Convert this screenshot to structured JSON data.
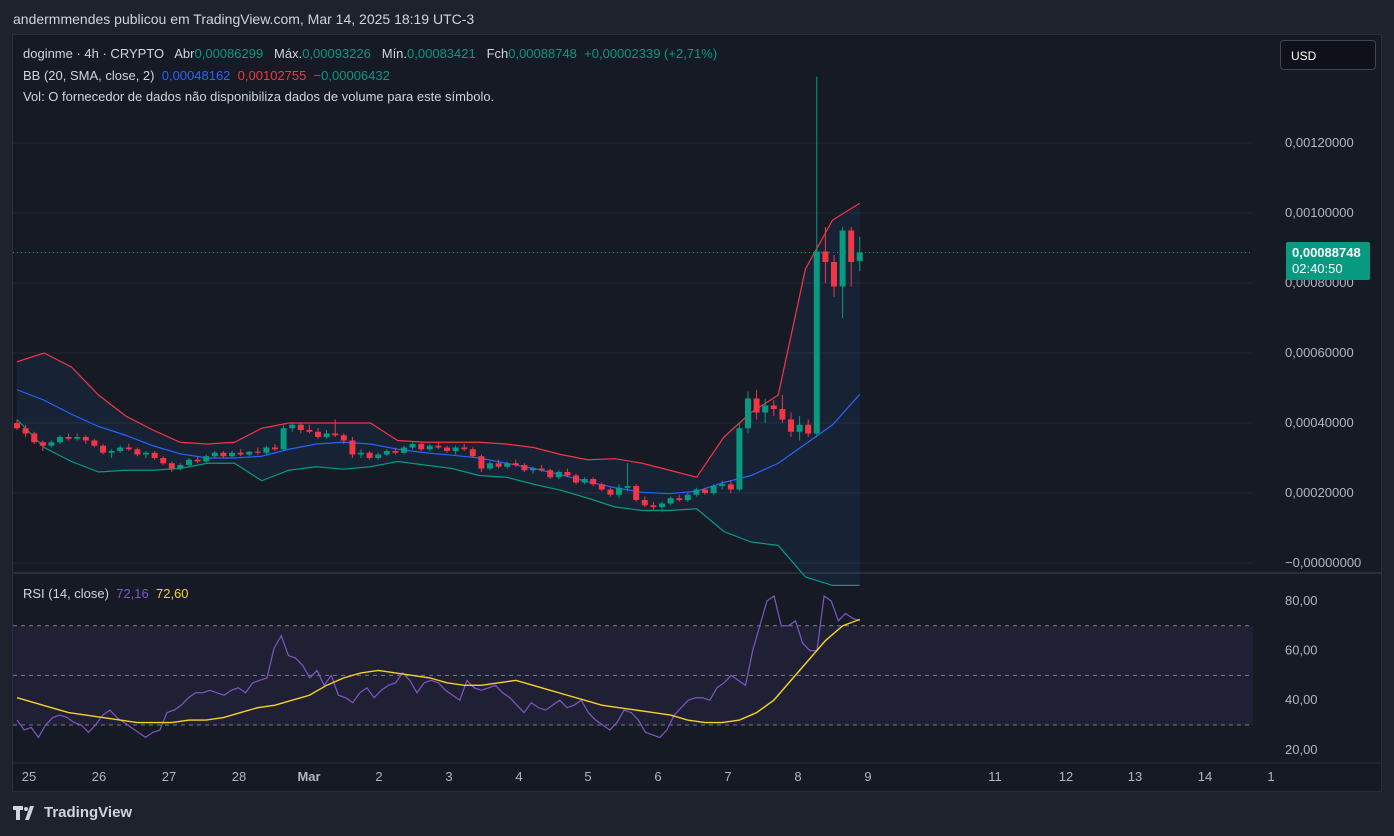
{
  "header": {
    "text": "andermmendes publicou em TradingView.com, Mar 14, 2025 18:19 UTC-3"
  },
  "legend": {
    "symbol": "doginme · 4h · CRYPTO",
    "o_label": "Abr",
    "o": "0,00086299",
    "h_label": "Máx.",
    "h": "0,00093226",
    "l_label": "Mín.",
    "l": "0,00083421",
    "c_label": "Fch",
    "c": "0,00088748",
    "change": "+0,00002339 (+2,71%)",
    "bb_label": "BB (20, SMA, close, 2)",
    "bb_basis": "0,00048162",
    "bb_upper": "0,00102755",
    "bb_lower": "−0,00006432",
    "vol_note": "Vol: O fornecedor de dados não disponibiliza dados de volume para este símbolo.",
    "rsi_label": "RSI (14, close)",
    "rsi_value": "72,16",
    "rsi_ma": "72,60"
  },
  "currency": {
    "label": "USD"
  },
  "last_price": {
    "value": "0,00088748",
    "countdown": "02:40:50"
  },
  "footer": {
    "brand": "TradingView"
  },
  "colors": {
    "up": "#089981",
    "down": "#f23645",
    "basis": "#2962ff",
    "upper": "#f23645",
    "lower": "#089981",
    "rsi": "#7e57c2",
    "rsi_ma": "#f5d226"
  },
  "chart_data": [
    {
      "type": "candlestick",
      "title": "doginme · 4h · CRYPTO",
      "x_ticks": [
        "25",
        "26",
        "27",
        "28",
        "Mar",
        "2",
        "3",
        "4",
        "5",
        "6",
        "7",
        "8",
        "9",
        "11",
        "12",
        "13",
        "14",
        "1"
      ],
      "y_ticks": [
        "0,00120000",
        "0,00100000",
        "0,00080000",
        "0,00060000",
        "0,00040000",
        "0,00020000",
        "−0,00000000"
      ],
      "ylim": [
        -1.2e-06,
        0.0014
      ],
      "ohlc": [
        [
          0.0004,
          0.00041,
          0.00038,
          0.000385
        ],
        [
          0.000385,
          0.000395,
          0.00036,
          0.00037
        ],
        [
          0.00037,
          0.000375,
          0.00034,
          0.000345
        ],
        [
          0.000345,
          0.00035,
          0.00032,
          0.000335
        ],
        [
          0.000335,
          0.00035,
          0.00033,
          0.000345
        ],
        [
          0.000345,
          0.000365,
          0.00034,
          0.00036
        ],
        [
          0.00036,
          0.00037,
          0.00035,
          0.000355
        ],
        [
          0.000355,
          0.00037,
          0.00035,
          0.00036
        ],
        [
          0.00036,
          0.000365,
          0.00034,
          0.00035
        ],
        [
          0.00035,
          0.000355,
          0.00033,
          0.000335
        ],
        [
          0.000335,
          0.00034,
          0.00031,
          0.000315
        ],
        [
          0.000315,
          0.000325,
          0.0003,
          0.00032
        ],
        [
          0.00032,
          0.000335,
          0.000315,
          0.00033
        ],
        [
          0.00033,
          0.00034,
          0.00032,
          0.000325
        ],
        [
          0.000325,
          0.00033,
          0.000305,
          0.00031
        ],
        [
          0.00031,
          0.00032,
          0.0003,
          0.000315
        ],
        [
          0.000315,
          0.00032,
          0.000295,
          0.0003
        ],
        [
          0.0003,
          0.000305,
          0.00028,
          0.000285
        ],
        [
          0.000285,
          0.00029,
          0.00026,
          0.00027
        ],
        [
          0.00027,
          0.000285,
          0.000265,
          0.00028
        ],
        [
          0.00028,
          0.0003,
          0.000275,
          0.000295
        ],
        [
          0.000295,
          0.000305,
          0.000285,
          0.00029
        ],
        [
          0.00029,
          0.00031,
          0.000285,
          0.000305
        ],
        [
          0.000305,
          0.00032,
          0.0003,
          0.000315
        ],
        [
          0.000315,
          0.00032,
          0.0003,
          0.000305
        ],
        [
          0.000305,
          0.00032,
          0.0003,
          0.000315
        ],
        [
          0.000315,
          0.000325,
          0.000305,
          0.00031
        ],
        [
          0.00031,
          0.00032,
          0.000305,
          0.000318
        ],
        [
          0.000318,
          0.00033,
          0.00031,
          0.000315
        ],
        [
          0.000315,
          0.000335,
          0.00031,
          0.00033
        ],
        [
          0.00033,
          0.00034,
          0.00032,
          0.000325
        ],
        [
          0.000325,
          0.000395,
          0.00032,
          0.000385
        ],
        [
          0.000385,
          0.0004,
          0.000375,
          0.000395
        ],
        [
          0.000395,
          0.0004,
          0.00037,
          0.00038
        ],
        [
          0.00038,
          0.000395,
          0.00037,
          0.000375
        ],
        [
          0.000375,
          0.000385,
          0.000355,
          0.00036
        ],
        [
          0.00036,
          0.00038,
          0.000355,
          0.00037
        ],
        [
          0.00037,
          0.00041,
          0.00036,
          0.000365
        ],
        [
          0.000365,
          0.00037,
          0.00034,
          0.00035
        ],
        [
          0.00035,
          0.00036,
          0.0003,
          0.00031
        ],
        [
          0.00031,
          0.000325,
          0.0003,
          0.000315
        ],
        [
          0.000315,
          0.00032,
          0.000295,
          0.0003
        ],
        [
          0.0003,
          0.000315,
          0.000295,
          0.00031
        ],
        [
          0.00031,
          0.000325,
          0.000305,
          0.00032
        ],
        [
          0.00032,
          0.00033,
          0.00031,
          0.000315
        ],
        [
          0.000315,
          0.000335,
          0.00031,
          0.00033
        ],
        [
          0.00033,
          0.000345,
          0.000325,
          0.00034
        ],
        [
          0.00034,
          0.000345,
          0.00032,
          0.000325
        ],
        [
          0.000325,
          0.00034,
          0.00032,
          0.000335
        ],
        [
          0.000335,
          0.000345,
          0.000325,
          0.00033
        ],
        [
          0.00033,
          0.000335,
          0.000315,
          0.00032
        ],
        [
          0.00032,
          0.000335,
          0.00031,
          0.00033
        ],
        [
          0.00033,
          0.00034,
          0.00032,
          0.000325
        ],
        [
          0.000325,
          0.00033,
          0.0003,
          0.000305
        ],
        [
          0.000305,
          0.00031,
          0.00026,
          0.00027
        ],
        [
          0.00027,
          0.00029,
          0.000265,
          0.000285
        ],
        [
          0.000285,
          0.000295,
          0.00027,
          0.000275
        ],
        [
          0.000275,
          0.00029,
          0.00027,
          0.000285
        ],
        [
          0.000285,
          0.000295,
          0.000275,
          0.00028
        ],
        [
          0.00028,
          0.000285,
          0.00026,
          0.000265
        ],
        [
          0.000265,
          0.000275,
          0.000255,
          0.00027
        ],
        [
          0.00027,
          0.00028,
          0.00026,
          0.000265
        ],
        [
          0.000265,
          0.00027,
          0.00024,
          0.000245
        ],
        [
          0.000245,
          0.000265,
          0.00024,
          0.00026
        ],
        [
          0.00026,
          0.00027,
          0.000245,
          0.00025
        ],
        [
          0.00025,
          0.000255,
          0.000225,
          0.00023
        ],
        [
          0.00023,
          0.000245,
          0.000225,
          0.00024
        ],
        [
          0.00024,
          0.000245,
          0.00022,
          0.000225
        ],
        [
          0.000225,
          0.00023,
          0.000205,
          0.00021
        ],
        [
          0.00021,
          0.000215,
          0.00019,
          0.000195
        ],
        [
          0.000195,
          0.000225,
          0.000185,
          0.000215
        ],
        [
          0.000215,
          0.000285,
          0.000205,
          0.00022
        ],
        [
          0.00022,
          0.000225,
          0.000175,
          0.00018
        ],
        [
          0.00018,
          0.00019,
          0.00016,
          0.000165
        ],
        [
          0.000165,
          0.000175,
          0.00015,
          0.00016
        ],
        [
          0.00016,
          0.000175,
          0.000145,
          0.00017
        ],
        [
          0.00017,
          0.00019,
          0.000165,
          0.000185
        ],
        [
          0.000185,
          0.000195,
          0.000175,
          0.00018
        ],
        [
          0.00018,
          0.0002,
          0.000175,
          0.000195
        ],
        [
          0.000195,
          0.000215,
          0.00019,
          0.00021
        ],
        [
          0.00021,
          0.000215,
          0.000195,
          0.0002
        ],
        [
          0.0002,
          0.000225,
          0.000195,
          0.00022
        ],
        [
          0.00022,
          0.000235,
          0.00021,
          0.000225
        ],
        [
          0.000225,
          0.000235,
          0.0002,
          0.00021
        ],
        [
          0.00021,
          0.0004,
          0.000205,
          0.000385
        ],
        [
          0.000385,
          0.00049,
          0.00037,
          0.00047
        ],
        [
          0.00047,
          0.000495,
          0.00041,
          0.00043
        ],
        [
          0.00043,
          0.00047,
          0.0004,
          0.00045
        ],
        [
          0.00045,
          0.000465,
          0.00042,
          0.00044
        ],
        [
          0.00044,
          0.00048,
          0.0004,
          0.00041
        ],
        [
          0.00041,
          0.00043,
          0.00036,
          0.000375
        ],
        [
          0.000375,
          0.00042,
          0.00035,
          0.000395
        ],
        [
          0.000395,
          0.00041,
          0.00036,
          0.00037
        ],
        [
          0.00037,
          0.00139,
          0.00036,
          0.00089
        ],
        [
          0.00089,
          0.00096,
          0.0008,
          0.00086
        ],
        [
          0.00086,
          0.00088,
          0.00076,
          0.00079
        ],
        [
          0.00079,
          0.00096,
          0.0007,
          0.00095
        ],
        [
          0.00095,
          0.00096,
          0.00079,
          0.00086
        ],
        [
          0.000863,
          0.000932,
          0.000834,
          0.000887
        ]
      ],
      "bb_basis": [
        0.000495,
        0.000465,
        0.000425,
        0.00039,
        0.000365,
        0.000335,
        0.000312,
        0.0003,
        0.0003,
        0.000305,
        0.000325,
        0.00034,
        0.000345,
        0.00034,
        0.000325,
        0.000315,
        0.000308,
        0.0003,
        0.000285,
        0.00027,
        0.000252,
        0.000232,
        0.000215,
        0.000202,
        0.000198,
        0.000205,
        0.00023,
        0.00025,
        0.000285,
        0.00034,
        0.000395,
        0.000482
      ],
      "bb_upper": [
        0.000575,
        0.0006,
        0.00056,
        0.00048,
        0.00042,
        0.00038,
        0.000345,
        0.00034,
        0.000345,
        0.000385,
        0.0004,
        0.0004,
        0.0004,
        0.0004,
        0.00035,
        0.000345,
        0.000345,
        0.000345,
        0.00034,
        0.00033,
        0.00031,
        0.000295,
        0.000298,
        0.000285,
        0.000265,
        0.000245,
        0.00036,
        0.00043,
        0.00048,
        0.00084,
        0.00098,
        0.001028
      ],
      "bb_lower": [
        0.00041,
        0.00033,
        0.00029,
        0.00026,
        0.000265,
        0.000265,
        0.00027,
        0.000285,
        0.000285,
        0.000235,
        0.000265,
        0.000275,
        0.000268,
        0.000275,
        0.00029,
        0.00028,
        0.00027,
        0.00025,
        0.000245,
        0.000225,
        0.000208,
        0.000185,
        0.00016,
        0.00015,
        0.00015,
        0.000155,
        9e-05,
        6e-05,
        5e-05,
        -4e-05,
        -6.4e-05,
        -6.4e-05
      ]
    },
    {
      "type": "line",
      "title": "RSI (14, close)",
      "y_ticks": [
        "80,00",
        "60,00",
        "40,00",
        "20,00"
      ],
      "ylim": [
        15,
        85
      ],
      "bands": [
        30,
        50,
        70
      ],
      "series": [
        {
          "name": "RSI",
          "values": [
            32,
            28,
            29,
            25,
            30,
            33,
            34,
            33,
            31,
            30,
            27,
            30,
            34,
            36,
            33,
            31,
            29,
            27,
            25,
            27,
            28,
            35,
            36,
            38,
            41,
            43,
            43,
            44,
            43,
            42,
            44,
            45,
            43,
            47,
            48,
            49,
            61,
            66,
            58,
            57,
            54,
            49,
            52,
            46,
            50,
            42,
            41,
            39,
            43,
            45,
            41,
            44,
            46,
            47,
            51,
            48,
            43,
            47,
            48,
            47,
            44,
            42,
            40,
            48,
            45,
            44,
            45,
            46,
            43,
            41,
            38,
            35,
            39,
            37,
            36,
            38,
            40,
            37,
            38,
            40,
            35,
            32,
            30,
            28,
            31,
            36,
            35,
            32,
            27,
            26,
            25,
            28,
            34,
            37,
            40,
            41,
            41,
            40,
            45,
            47,
            50,
            48,
            46,
            60,
            70,
            80,
            82,
            70,
            70,
            72,
            63,
            60,
            60,
            82,
            80,
            72,
            75,
            73,
            72
          ]
        },
        {
          "name": "MA",
          "values": [
            41,
            39,
            37,
            35,
            34,
            33,
            32,
            31,
            31,
            31,
            32,
            32,
            33,
            35,
            37,
            38,
            40,
            42,
            46,
            49,
            51,
            52,
            51,
            50,
            49,
            47,
            46,
            46,
            47,
            48,
            46,
            44,
            42,
            40,
            38,
            37,
            36,
            35,
            34,
            32,
            31,
            31,
            32,
            35,
            40,
            48,
            56,
            64,
            70,
            72.6
          ]
        }
      ]
    }
  ]
}
